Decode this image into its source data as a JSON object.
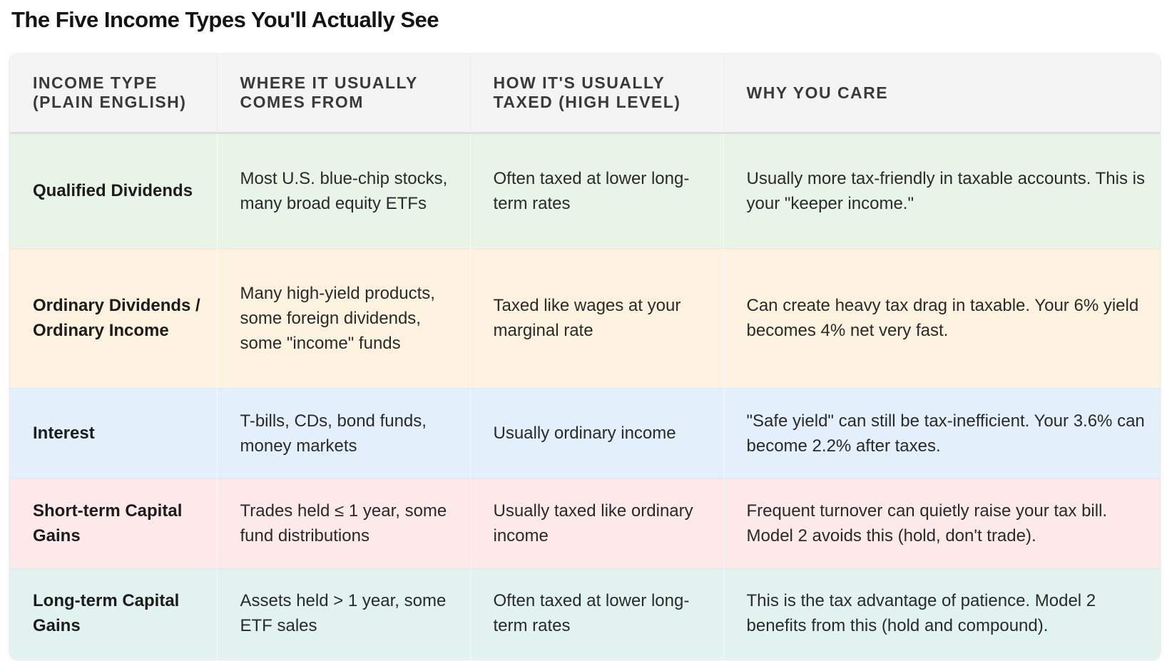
{
  "title": "The Five Income Types You'll Actually See",
  "columns": [
    "INCOME TYPE (PLAIN ENGLISH)",
    "WHERE IT USUALLY COMES FROM",
    "HOW IT'S USUALLY TAXED (HIGH LEVEL)",
    "WHY YOU CARE"
  ],
  "rows": [
    {
      "income_type": "Qualified Dividends",
      "where": "Most U.S. blue-chip stocks, many broad equity ETFs",
      "taxed": "Often taxed at lower long-term rates",
      "why": "Usually more tax-friendly in taxable accounts. This is your \"keeper income.\"",
      "color": "#e9f4e8"
    },
    {
      "income_type": "Ordinary Dividends / Ordinary Income",
      "where": "Many high-yield products, some foreign dividends, some \"income\" funds",
      "taxed": "Taxed like wages at your marginal rate",
      "why": "Can create heavy tax drag in taxable. Your 6% yield becomes 4% net very fast.",
      "color": "#fdf1df"
    },
    {
      "income_type": "Interest",
      "where": "T-bills, CDs, bond funds, money markets",
      "taxed": "Usually ordinary income",
      "why": "\"Safe yield\" can still be tax-inefficient. Your 3.6% can become 2.2% after taxes.",
      "color": "#e3f0fb"
    },
    {
      "income_type": "Short-term Capital Gains",
      "where": "Trades held ≤ 1 year, some fund distributions",
      "taxed": "Usually taxed like ordinary income",
      "why": "Frequent turnover can quietly raise your tax bill. Model 2 avoids this (hold, don't trade).",
      "color": "#fde8ea"
    },
    {
      "income_type": "Long-term Capital Gains",
      "where": "Assets held > 1 year, some ETF sales",
      "taxed": "Often taxed at lower long-term rates",
      "why": "This is the tax advantage of patience. Model 2 benefits from this (hold and compound).",
      "color": "#e2f3ef"
    }
  ]
}
